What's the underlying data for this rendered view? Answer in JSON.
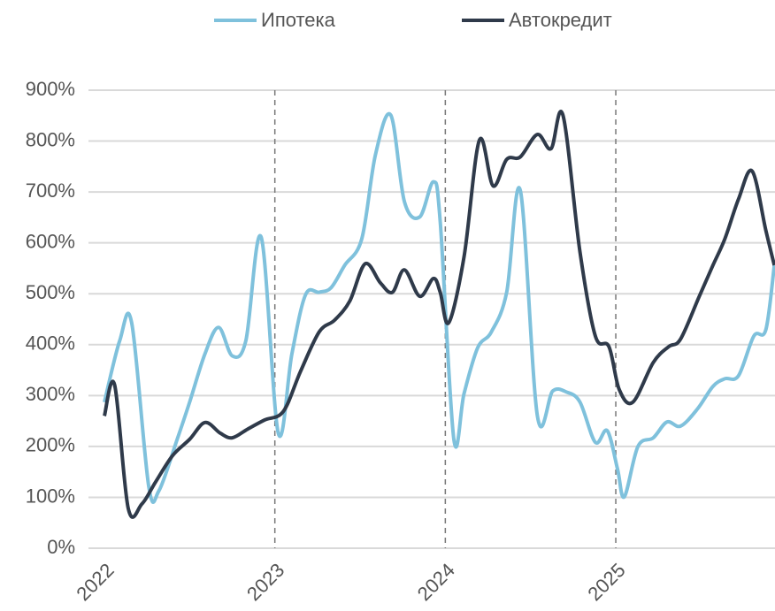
{
  "chart_data": {
    "type": "line",
    "series": [
      {
        "name": "Ипотека",
        "color": "#7fc1dc",
        "x": [
          2022,
          2022.09,
          2022.16,
          2022.26,
          2022.32,
          2022.43,
          2022.5,
          2022.59,
          2022.67,
          2022.75,
          2022.83,
          2022.92,
          2023.02,
          2023.1,
          2023.18,
          2023.26,
          2023.33,
          2023.41,
          2023.51,
          2023.59,
          2023.68,
          2023.76,
          2023.85,
          2023.93,
          2023.97,
          2024.05,
          2024.11,
          2024.19,
          2024.27,
          2024.36,
          2024.44,
          2024.54,
          2024.63,
          2024.71,
          2024.79,
          2024.88,
          2024.95,
          2025.01,
          2025.05,
          2025.13,
          2025.22,
          2025.3,
          2025.38,
          2025.48,
          2025.57,
          2025.64,
          2025.72,
          2025.81,
          2025.88,
          2025.93
        ],
        "values": [
          287,
          408,
          443,
          122,
          113,
          217,
          287,
          382,
          434,
          378,
          408,
          611,
          226,
          382,
          498,
          503,
          512,
          556,
          608,
          773,
          851,
          681,
          651,
          720,
          642,
          214,
          304,
          394,
          425,
          503,
          703,
          260,
          309,
          307,
          287,
          208,
          231,
          156,
          101,
          200,
          217,
          248,
          240,
          274,
          318,
          333,
          339,
          417,
          429,
          556
        ]
      },
      {
        "name": "Автокредит",
        "color": "#2f3a4a",
        "x": [
          2022,
          2022.06,
          2022.14,
          2022.22,
          2022.3,
          2022.4,
          2022.5,
          2022.59,
          2022.68,
          2022.75,
          2022.84,
          2022.94,
          2023.05,
          2023.15,
          2023.26,
          2023.35,
          2023.44,
          2023.53,
          2023.62,
          2023.69,
          2023.76,
          2023.85,
          2023.93,
          2023.97,
          2024.02,
          2024.11,
          2024.2,
          2024.28,
          2024.36,
          2024.44,
          2024.54,
          2024.62,
          2024.69,
          2024.79,
          2024.88,
          2024.96,
          2025.02,
          2025.1,
          2025.22,
          2025.31,
          2025.38,
          2025.49,
          2025.57,
          2025.64,
          2025.72,
          2025.8,
          2025.88,
          2025.93
        ],
        "values": [
          260,
          321,
          78,
          87,
          130,
          182,
          214,
          247,
          226,
          217,
          234,
          252,
          269,
          347,
          425,
          448,
          486,
          559,
          521,
          503,
          547,
          495,
          530,
          503,
          443,
          573,
          802,
          712,
          764,
          769,
          813,
          785,
          851,
          582,
          417,
          396,
          312,
          287,
          365,
          396,
          411,
          495,
          556,
          608,
          686,
          741,
          625,
          556
        ]
      }
    ],
    "xlim": [
      2022,
      2025.934
    ],
    "xticks": [
      2022,
      2023,
      2024,
      2025
    ],
    "ylim": [
      0,
      900
    ],
    "yticks": [
      {
        "value": 0,
        "label": "0%"
      },
      {
        "value": 100,
        "label": "100%"
      },
      {
        "value": 200,
        "label": "200%"
      },
      {
        "value": 300,
        "label": "300%"
      },
      {
        "value": 400,
        "label": "400%"
      },
      {
        "value": 500,
        "label": "500%"
      },
      {
        "value": 600,
        "label": "600%"
      },
      {
        "value": 700,
        "label": "700%"
      },
      {
        "value": 800,
        "label": "800%"
      },
      {
        "value": 900,
        "label": "900%"
      }
    ],
    "grid": true
  }
}
